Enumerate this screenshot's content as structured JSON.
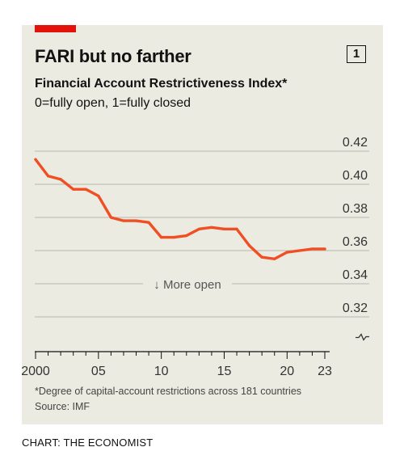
{
  "header": {
    "title": "FARI but no farther",
    "badge": "1"
  },
  "chart_data": {
    "type": "line",
    "title": "Financial Account Restrictiveness Index*",
    "subtitle": "0=fully open, 1=fully closed",
    "x": [
      2000,
      2001,
      2002,
      2003,
      2004,
      2005,
      2006,
      2007,
      2008,
      2009,
      2010,
      2011,
      2012,
      2013,
      2014,
      2015,
      2016,
      2017,
      2018,
      2019,
      2020,
      2021,
      2022,
      2023
    ],
    "series": [
      {
        "values": [
          0.415,
          0.405,
          0.403,
          0.397,
          0.397,
          0.393,
          0.38,
          0.378,
          0.378,
          0.377,
          0.368,
          0.368,
          0.369,
          0.373,
          0.374,
          0.373,
          0.373,
          0.363,
          0.356,
          0.355,
          0.359,
          0.36,
          0.361,
          0.361
        ]
      }
    ],
    "color": "#f04e23",
    "ylim": [
      0.32,
      0.42
    ],
    "y_ticks": [
      "0.42",
      "0.40",
      "0.38",
      "0.36",
      "0.34",
      "0.32"
    ],
    "xlim": [
      2000,
      2023
    ],
    "x_tick_labels": [
      "2000",
      "05",
      "10",
      "15",
      "20",
      "23"
    ],
    "annotation": "↓ More open",
    "axis_break": true,
    "grid": true,
    "footnote": "*Degree of capital-account restrictions across 181 countries",
    "source": "Source: IMF"
  },
  "credit": "CHART: THE ECONOMIST"
}
